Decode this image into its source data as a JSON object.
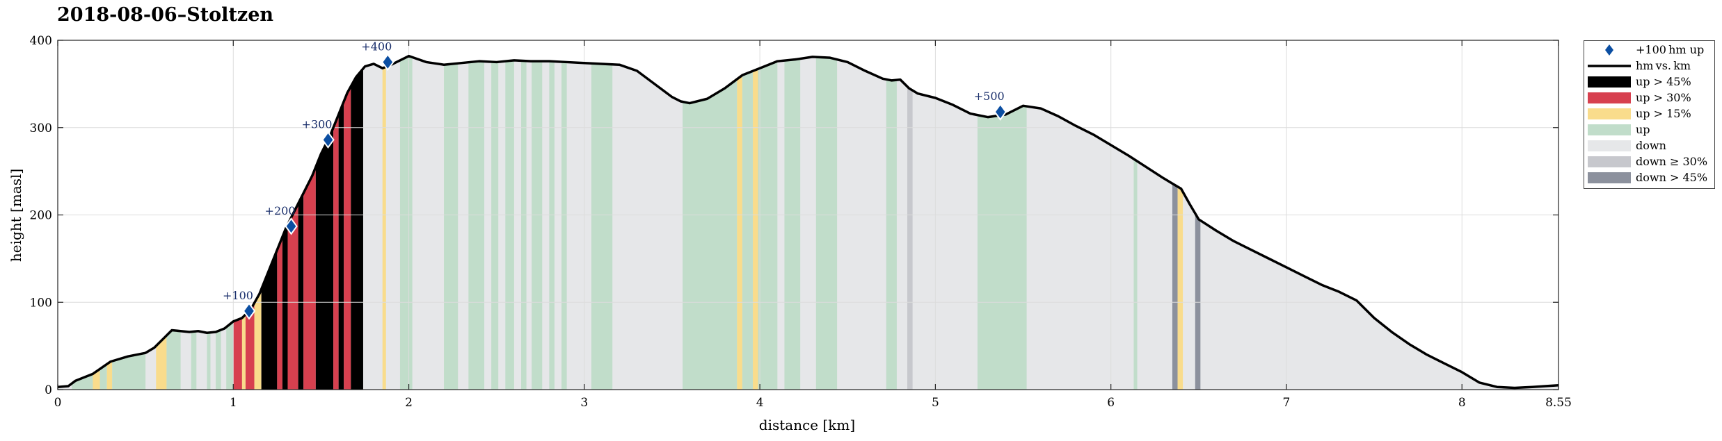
{
  "chart_data": {
    "type": "area",
    "title": "2018-08-06–Stoltzen",
    "xlabel": "distance [km]",
    "ylabel": "height [masl]",
    "xlim": [
      0,
      8.55
    ],
    "ylim": [
      0,
      400
    ],
    "xticks": [
      0,
      1,
      2,
      3,
      4,
      5,
      6,
      7,
      8,
      8.55
    ],
    "xtick_labels": [
      "0",
      "1",
      "2",
      "3",
      "4",
      "5",
      "6",
      "7",
      "8",
      "8.55"
    ],
    "yticks": [
      0,
      100,
      200,
      300,
      400
    ],
    "ytick_labels": [
      "0",
      "100",
      "200",
      "300",
      "400"
    ],
    "grid": true,
    "legend_position": "outside-right-top",
    "profile": {
      "name": "hm vs. km",
      "x": [
        0,
        0.06,
        0.1,
        0.2,
        0.25,
        0.3,
        0.4,
        0.45,
        0.5,
        0.55,
        0.6,
        0.65,
        0.7,
        0.75,
        0.8,
        0.85,
        0.9,
        0.95,
        1.0,
        1.05,
        1.1,
        1.15,
        1.2,
        1.25,
        1.3,
        1.35,
        1.4,
        1.45,
        1.5,
        1.55,
        1.6,
        1.65,
        1.7,
        1.75,
        1.8,
        1.85,
        1.9,
        1.95,
        2.0,
        2.1,
        2.2,
        2.3,
        2.4,
        2.5,
        2.6,
        2.7,
        2.8,
        2.9,
        3.0,
        3.1,
        3.2,
        3.3,
        3.4,
        3.5,
        3.55,
        3.6,
        3.7,
        3.8,
        3.9,
        4.0,
        4.1,
        4.2,
        4.3,
        4.4,
        4.5,
        4.6,
        4.7,
        4.75,
        4.8,
        4.85,
        4.9,
        5.0,
        5.1,
        5.2,
        5.3,
        5.4,
        5.5,
        5.6,
        5.7,
        5.8,
        5.9,
        6.0,
        6.1,
        6.2,
        6.3,
        6.35,
        6.4,
        6.45,
        6.5,
        6.6,
        6.7,
        6.8,
        6.9,
        7.0,
        7.1,
        7.2,
        7.3,
        7.4,
        7.5,
        7.6,
        7.7,
        7.8,
        7.9,
        8.0,
        8.1,
        8.2,
        8.3,
        8.4,
        8.55
      ],
      "y": [
        3,
        4,
        10,
        18,
        25,
        32,
        38,
        40,
        42,
        48,
        58,
        68,
        67,
        66,
        67,
        65,
        66,
        70,
        78,
        82,
        92,
        110,
        135,
        160,
        185,
        205,
        225,
        245,
        270,
        290,
        315,
        340,
        358,
        370,
        373,
        368,
        372,
        377,
        382,
        375,
        372,
        374,
        376,
        375,
        377,
        376,
        376,
        375,
        374,
        373,
        372,
        365,
        350,
        335,
        330,
        328,
        333,
        345,
        360,
        368,
        376,
        378,
        381,
        380,
        375,
        365,
        356,
        354,
        355,
        345,
        339,
        334,
        326,
        316,
        312,
        315,
        325,
        322,
        313,
        302,
        292,
        280,
        268,
        255,
        242,
        236,
        230,
        212,
        195,
        182,
        170,
        160,
        150,
        140,
        130,
        120,
        112,
        102,
        82,
        66,
        52,
        40,
        30,
        20,
        8,
        3,
        2,
        3,
        5
      ]
    },
    "markers": {
      "name": "+100 hm up",
      "labels": [
        "+100",
        "+200",
        "+300",
        "+400",
        "+500"
      ],
      "x": [
        1.09,
        1.33,
        1.54,
        1.88,
        5.37
      ],
      "y": [
        90,
        187,
        286,
        375,
        318
      ]
    },
    "segments": [
      {
        "x0": 0.08,
        "x1": 0.2,
        "cls": "up"
      },
      {
        "x0": 0.2,
        "x1": 0.24,
        "cls": "up > 15%"
      },
      {
        "x0": 0.24,
        "x1": 0.28,
        "cls": "up"
      },
      {
        "x0": 0.28,
        "x1": 0.31,
        "cls": "up > 15%"
      },
      {
        "x0": 0.31,
        "x1": 0.5,
        "cls": "up"
      },
      {
        "x0": 0.56,
        "x1": 0.62,
        "cls": "up > 15%"
      },
      {
        "x0": 0.62,
        "x1": 0.7,
        "cls": "up"
      },
      {
        "x0": 0.76,
        "x1": 0.79,
        "cls": "up"
      },
      {
        "x0": 0.85,
        "x1": 0.87,
        "cls": "up"
      },
      {
        "x0": 0.9,
        "x1": 0.93,
        "cls": "up"
      },
      {
        "x0": 0.96,
        "x1": 1.0,
        "cls": "up"
      },
      {
        "x0": 1.0,
        "x1": 1.05,
        "cls": "up > 30%"
      },
      {
        "x0": 1.05,
        "x1": 1.07,
        "cls": "up > 15%"
      },
      {
        "x0": 1.07,
        "x1": 1.12,
        "cls": "up > 30%"
      },
      {
        "x0": 1.12,
        "x1": 1.16,
        "cls": "up > 15%"
      },
      {
        "x0": 1.16,
        "x1": 1.25,
        "cls": "up > 45%"
      },
      {
        "x0": 1.25,
        "x1": 1.28,
        "cls": "up > 30%"
      },
      {
        "x0": 1.28,
        "x1": 1.31,
        "cls": "up > 45%"
      },
      {
        "x0": 1.31,
        "x1": 1.37,
        "cls": "up > 30%"
      },
      {
        "x0": 1.37,
        "x1": 1.4,
        "cls": "up > 45%"
      },
      {
        "x0": 1.4,
        "x1": 1.47,
        "cls": "up > 30%"
      },
      {
        "x0": 1.47,
        "x1": 1.57,
        "cls": "up > 45%"
      },
      {
        "x0": 1.57,
        "x1": 1.6,
        "cls": "up > 30%"
      },
      {
        "x0": 1.6,
        "x1": 1.63,
        "cls": "up > 45%"
      },
      {
        "x0": 1.63,
        "x1": 1.67,
        "cls": "up > 30%"
      },
      {
        "x0": 1.67,
        "x1": 1.74,
        "cls": "up > 45%"
      },
      {
        "x0": 1.85,
        "x1": 1.87,
        "cls": "up > 15%"
      },
      {
        "x0": 1.95,
        "x1": 2.02,
        "cls": "up"
      },
      {
        "x0": 2.2,
        "x1": 2.28,
        "cls": "up"
      },
      {
        "x0": 2.34,
        "x1": 2.43,
        "cls": "up"
      },
      {
        "x0": 2.47,
        "x1": 2.51,
        "cls": "up"
      },
      {
        "x0": 2.55,
        "x1": 2.6,
        "cls": "up"
      },
      {
        "x0": 2.64,
        "x1": 2.67,
        "cls": "up"
      },
      {
        "x0": 2.7,
        "x1": 2.76,
        "cls": "up"
      },
      {
        "x0": 2.8,
        "x1": 2.83,
        "cls": "up"
      },
      {
        "x0": 2.87,
        "x1": 2.9,
        "cls": "up"
      },
      {
        "x0": 3.04,
        "x1": 3.16,
        "cls": "up"
      },
      {
        "x0": 3.56,
        "x1": 3.87,
        "cls": "up"
      },
      {
        "x0": 3.87,
        "x1": 3.9,
        "cls": "up > 15%"
      },
      {
        "x0": 3.9,
        "x1": 3.96,
        "cls": "up"
      },
      {
        "x0": 3.96,
        "x1": 3.99,
        "cls": "up > 15%"
      },
      {
        "x0": 3.99,
        "x1": 4.1,
        "cls": "up"
      },
      {
        "x0": 4.14,
        "x1": 4.23,
        "cls": "up"
      },
      {
        "x0": 4.32,
        "x1": 4.44,
        "cls": "up"
      },
      {
        "x0": 4.72,
        "x1": 4.78,
        "cls": "up"
      },
      {
        "x0": 4.84,
        "x1": 4.87,
        "cls": "down ≥ 30%"
      },
      {
        "x0": 5.24,
        "x1": 5.52,
        "cls": "up"
      },
      {
        "x0": 6.13,
        "x1": 6.15,
        "cls": "up"
      },
      {
        "x0": 6.35,
        "x1": 6.38,
        "cls": "down > 45%"
      },
      {
        "x0": 6.38,
        "x1": 6.41,
        "cls": "up > 15%"
      },
      {
        "x0": 6.48,
        "x1": 6.51,
        "cls": "down > 45%"
      }
    ],
    "legend": [
      {
        "label": "+100 hm up",
        "kind": "marker",
        "color": "#0b4ea2"
      },
      {
        "label": "hm vs. km",
        "kind": "line",
        "color": "#000000"
      },
      {
        "label": "up > 45%",
        "kind": "patch",
        "color": "#000000"
      },
      {
        "label": "up > 30%",
        "kind": "patch",
        "color": "#d7404f"
      },
      {
        "label": "up > 15%",
        "kind": "patch",
        "color": "#f9dc8c"
      },
      {
        "label": "up",
        "kind": "patch",
        "color": "#c1ddca"
      },
      {
        "label": "down",
        "kind": "patch",
        "color": "#e6e7e9"
      },
      {
        "label": "down ≥ 30%",
        "kind": "patch",
        "color": "#c7c8cd"
      },
      {
        "label": "down > 45%",
        "kind": "patch",
        "color": "#8c919d"
      }
    ],
    "colors": {
      "up > 45%": "#000000",
      "up > 30%": "#d7404f",
      "up > 15%": "#f9dc8c",
      "up": "#c1ddca",
      "down": "#e6e7e9",
      "down ≥ 30%": "#c7c8cd",
      "down > 45%": "#8c919d",
      "marker": "#0b4ea2",
      "marker_text": "#1a2f6b",
      "grid": "#dcdcdc"
    }
  }
}
